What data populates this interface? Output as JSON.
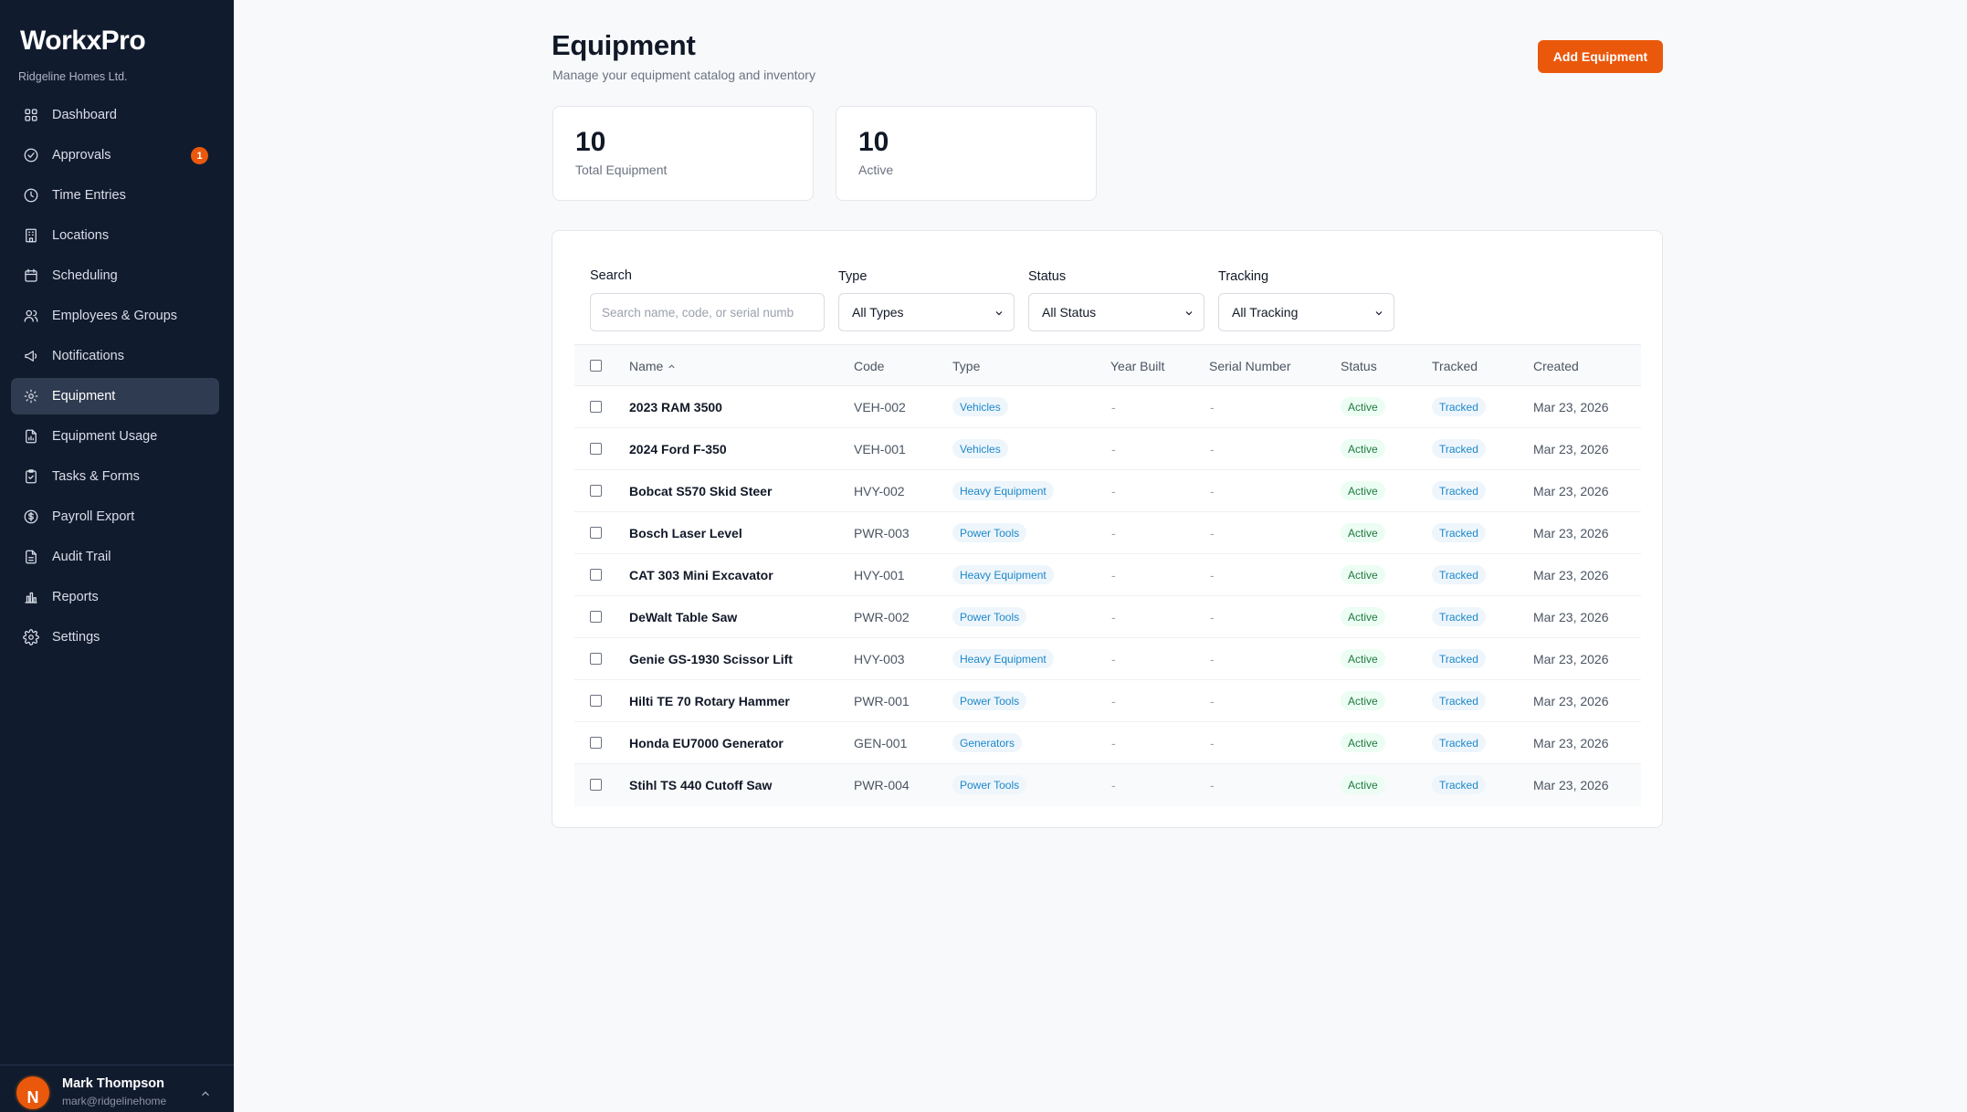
{
  "app": {
    "brand": "WorkxPro",
    "company": "Ridgeline Homes Ltd."
  },
  "sidebar": {
    "items": [
      {
        "label": "Dashboard",
        "icon": "grid-icon"
      },
      {
        "label": "Approvals",
        "icon": "check-circle-icon",
        "badge": "1"
      },
      {
        "label": "Time Entries",
        "icon": "clock-icon"
      },
      {
        "label": "Locations",
        "icon": "building-icon"
      },
      {
        "label": "Scheduling",
        "icon": "calendar-icon"
      },
      {
        "label": "Employees & Groups",
        "icon": "users-icon"
      },
      {
        "label": "Notifications",
        "icon": "megaphone-icon"
      },
      {
        "label": "Equipment",
        "icon": "gear-icon",
        "active": true
      },
      {
        "label": "Equipment Usage",
        "icon": "file-chart-icon"
      },
      {
        "label": "Tasks & Forms",
        "icon": "clipboard-check-icon"
      },
      {
        "label": "Payroll Export",
        "icon": "dollar-circle-icon"
      },
      {
        "label": "Audit Trail",
        "icon": "file-text-icon"
      },
      {
        "label": "Reports",
        "icon": "bar-chart-icon"
      },
      {
        "label": "Settings",
        "icon": "settings-icon"
      }
    ]
  },
  "user": {
    "initial": "N",
    "name": "Mark Thompson",
    "email": "mark@ridgelinehome"
  },
  "header": {
    "title": "Equipment",
    "subtitle": "Manage your equipment catalog and inventory",
    "add_button": "Add Equipment"
  },
  "stats": [
    {
      "value": "10",
      "label": "Total Equipment"
    },
    {
      "value": "10",
      "label": "Active"
    }
  ],
  "filters": {
    "search_label": "Search",
    "search_placeholder": "Search name, code, or serial numb",
    "type_label": "Type",
    "type_value": "All Types",
    "status_label": "Status",
    "status_value": "All Status",
    "tracking_label": "Tracking",
    "tracking_value": "All Tracking"
  },
  "table": {
    "columns": [
      "Name",
      "Code",
      "Type",
      "Year Built",
      "Serial Number",
      "Status",
      "Tracked",
      "Created"
    ],
    "rows": [
      {
        "name": "2023 RAM 3500",
        "code": "VEH-002",
        "type": "Vehicles",
        "year": "-",
        "serial": "-",
        "status": "Active",
        "tracked": "Tracked",
        "created": "Mar 23, 2026"
      },
      {
        "name": "2024 Ford F-350",
        "code": "VEH-001",
        "type": "Vehicles",
        "year": "-",
        "serial": "-",
        "status": "Active",
        "tracked": "Tracked",
        "created": "Mar 23, 2026"
      },
      {
        "name": "Bobcat S570 Skid Steer",
        "code": "HVY-002",
        "type": "Heavy Equipment",
        "year": "-",
        "serial": "-",
        "status": "Active",
        "tracked": "Tracked",
        "created": "Mar 23, 2026"
      },
      {
        "name": "Bosch Laser Level",
        "code": "PWR-003",
        "type": "Power Tools",
        "year": "-",
        "serial": "-",
        "status": "Active",
        "tracked": "Tracked",
        "created": "Mar 23, 2026"
      },
      {
        "name": "CAT 303 Mini Excavator",
        "code": "HVY-001",
        "type": "Heavy Equipment",
        "year": "-",
        "serial": "-",
        "status": "Active",
        "tracked": "Tracked",
        "created": "Mar 23, 2026"
      },
      {
        "name": "DeWalt Table Saw",
        "code": "PWR-002",
        "type": "Power Tools",
        "year": "-",
        "serial": "-",
        "status": "Active",
        "tracked": "Tracked",
        "created": "Mar 23, 2026"
      },
      {
        "name": "Genie GS-1930 Scissor Lift",
        "code": "HVY-003",
        "type": "Heavy Equipment",
        "year": "-",
        "serial": "-",
        "status": "Active",
        "tracked": "Tracked",
        "created": "Mar 23, 2026"
      },
      {
        "name": "Hilti TE 70 Rotary Hammer",
        "code": "PWR-001",
        "type": "Power Tools",
        "year": "-",
        "serial": "-",
        "status": "Active",
        "tracked": "Tracked",
        "created": "Mar 23, 2026"
      },
      {
        "name": "Honda EU7000 Generator",
        "code": "GEN-001",
        "type": "Generators",
        "year": "-",
        "serial": "-",
        "status": "Active",
        "tracked": "Tracked",
        "created": "Mar 23, 2026"
      },
      {
        "name": "Stihl TS 440 Cutoff Saw",
        "code": "PWR-004",
        "type": "Power Tools",
        "year": "-",
        "serial": "-",
        "status": "Active",
        "tracked": "Tracked",
        "created": "Mar 23, 2026"
      }
    ]
  },
  "colors": {
    "sidebar_bg": "#111b2e",
    "accent": "#ea580c",
    "active_nav": "#2f3b50",
    "type_pill": "#1d87c9",
    "status_pill": "#1f7a3f"
  }
}
